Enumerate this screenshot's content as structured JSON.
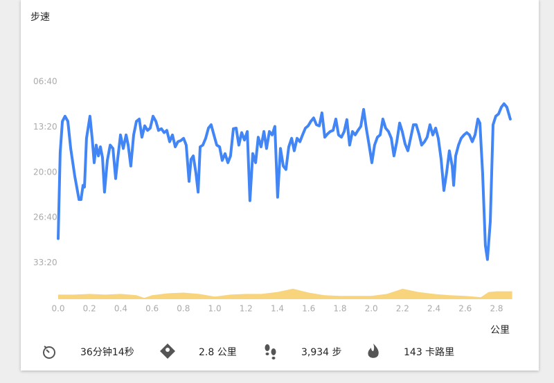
{
  "chart_data": {
    "type": "line",
    "title": "步速",
    "x_label": "公里",
    "color": "#4285f4",
    "y_inverted": true,
    "x": [
      0,
      0.013,
      0.027,
      0.044,
      0.062,
      0.08,
      0.106,
      0.133,
      0.146,
      0.159,
      0.168,
      0.181,
      0.203,
      0.217,
      0.23,
      0.243,
      0.257,
      0.27,
      0.283,
      0.296,
      0.314,
      0.332,
      0.35,
      0.367,
      0.38,
      0.398,
      0.416,
      0.434,
      0.447,
      0.464,
      0.482,
      0.5,
      0.518,
      0.535,
      0.553,
      0.571,
      0.588,
      0.606,
      0.624,
      0.641,
      0.659,
      0.677,
      0.694,
      0.712,
      0.73,
      0.748,
      0.765,
      0.783,
      0.801,
      0.818,
      0.836,
      0.849,
      0.863,
      0.88,
      0.894,
      0.907,
      0.924,
      0.942,
      0.96,
      0.977,
      0.995,
      1.013,
      1.031,
      1.048,
      1.066,
      1.084,
      1.101,
      1.119,
      1.137,
      1.154,
      1.172,
      1.19,
      1.208,
      1.225,
      1.243,
      1.261,
      1.278,
      1.296,
      1.314,
      1.331,
      1.349,
      1.367,
      1.384,
      1.402,
      1.42,
      1.438,
      1.455,
      1.473,
      1.491,
      1.508,
      1.526,
      1.544,
      1.561,
      1.579,
      1.597,
      1.614,
      1.632,
      1.65,
      1.668,
      1.685,
      1.703,
      1.721,
      1.738,
      1.756,
      1.774,
      1.791,
      1.809,
      1.827,
      1.844,
      1.862,
      1.88,
      1.897,
      1.915,
      1.933,
      1.951,
      1.968,
      1.986,
      2.004,
      2.021,
      2.039,
      2.057,
      2.074,
      2.092,
      2.11,
      2.128,
      2.145,
      2.163,
      2.181,
      2.198,
      2.216,
      2.234,
      2.251,
      2.269,
      2.287,
      2.304,
      2.322,
      2.34,
      2.357,
      2.375,
      2.393,
      2.411,
      2.428,
      2.446,
      2.464,
      2.481,
      2.499,
      2.517,
      2.526,
      2.539,
      2.557,
      2.574,
      2.592,
      2.61,
      2.627,
      2.645,
      2.663,
      2.681,
      2.694,
      2.711,
      2.729,
      2.742,
      2.76,
      2.778,
      2.795,
      2.813,
      2.831,
      2.848,
      2.866,
      2.888
    ],
    "values": [
      1785,
      1025,
      750,
      705,
      750,
      990,
      1235,
      1440,
      1440,
      1315,
      1330,
      900,
      705,
      900,
      1115,
      960,
      1055,
      975,
      1070,
      1375,
      1095,
      960,
      990,
      1255,
      1085,
      870,
      990,
      870,
      960,
      1145,
      870,
      750,
      730,
      890,
      790,
      830,
      810,
      705,
      750,
      830,
      815,
      850,
      830,
      930,
      870,
      975,
      930,
      920,
      900,
      960,
      1280,
      1085,
      1055,
      1205,
      1375,
      975,
      960,
      900,
      810,
      780,
      870,
      960,
      975,
      1095,
      1035,
      1115,
      1055,
      815,
      810,
      960,
      850,
      915,
      840,
      1450,
      1035,
      1115,
      890,
      975,
      840,
      990,
      840,
      870,
      795,
      1420,
      990,
      1145,
      1175,
      975,
      900,
      1010,
      900,
      930,
      870,
      810,
      790,
      750,
      720,
      780,
      790,
      675,
      890,
      860,
      840,
      830,
      730,
      870,
      890,
      840,
      735,
      960,
      840,
      870,
      830,
      795,
      645,
      810,
      960,
      1115,
      960,
      890,
      870,
      730,
      810,
      840,
      900,
      1055,
      930,
      765,
      840,
      950,
      1010,
      900,
      780,
      780,
      860,
      960,
      930,
      890,
      780,
      870,
      810,
      900,
      1085,
      1360,
      1205,
      1010,
      1145,
      1315,
      1055,
      960,
      900,
      870,
      850,
      870,
      930,
      870,
      730,
      765,
      1205,
      1845,
      1970,
      1635,
      780,
      705,
      685,
      625,
      595,
      625,
      730
    ],
    "ylim": [
      0,
      2320
    ],
    "yticks": [
      {
        "value": 400,
        "label": "06:40"
      },
      {
        "value": 800,
        "label": "13:20"
      },
      {
        "value": 1200,
        "label": "20:00"
      },
      {
        "value": 1600,
        "label": "26:40"
      },
      {
        "value": 2000,
        "label": "33:20"
      }
    ],
    "xlim": [
      0,
      2.9
    ],
    "xticks": [
      {
        "value": 0,
        "label": "0.0"
      },
      0.2,
      0.4,
      0.6,
      0.8,
      {
        "value": 1,
        "label": "1.0"
      },
      1.2,
      1.4,
      1.6,
      1.8,
      {
        "value": 2,
        "label": "2.0"
      },
      2.2,
      2.4,
      2.6,
      2.8
    ],
    "area": {
      "color": "#f8d57c",
      "y2lim": [
        0,
        40
      ],
      "x": [
        0,
        0.1,
        0.2,
        0.3,
        0.4,
        0.5,
        0.55,
        0.6,
        0.7,
        0.8,
        0.9,
        1.0,
        1.1,
        1.2,
        1.3,
        1.4,
        1.5,
        1.6,
        1.7,
        1.8,
        1.9,
        2.0,
        2.1,
        2.2,
        2.3,
        2.4,
        2.5,
        2.6,
        2.7,
        2.75,
        2.8,
        2.9
      ],
      "values": [
        0.7,
        0.7,
        0.8,
        0.7,
        0.8,
        0.6,
        0.2,
        0.6,
        0.9,
        1.0,
        0.8,
        0.4,
        0.7,
        0.8,
        0.8,
        1.1,
        1.6,
        1.0,
        0.6,
        0.5,
        0.5,
        0.5,
        0.8,
        1.6,
        1.1,
        0.8,
        0.6,
        0.5,
        0.3,
        1.1,
        1.2,
        1.2
      ]
    }
  },
  "stats": [
    "36分钟14秒",
    "2.8 公里",
    "3,934 步",
    "143 卡路里"
  ]
}
